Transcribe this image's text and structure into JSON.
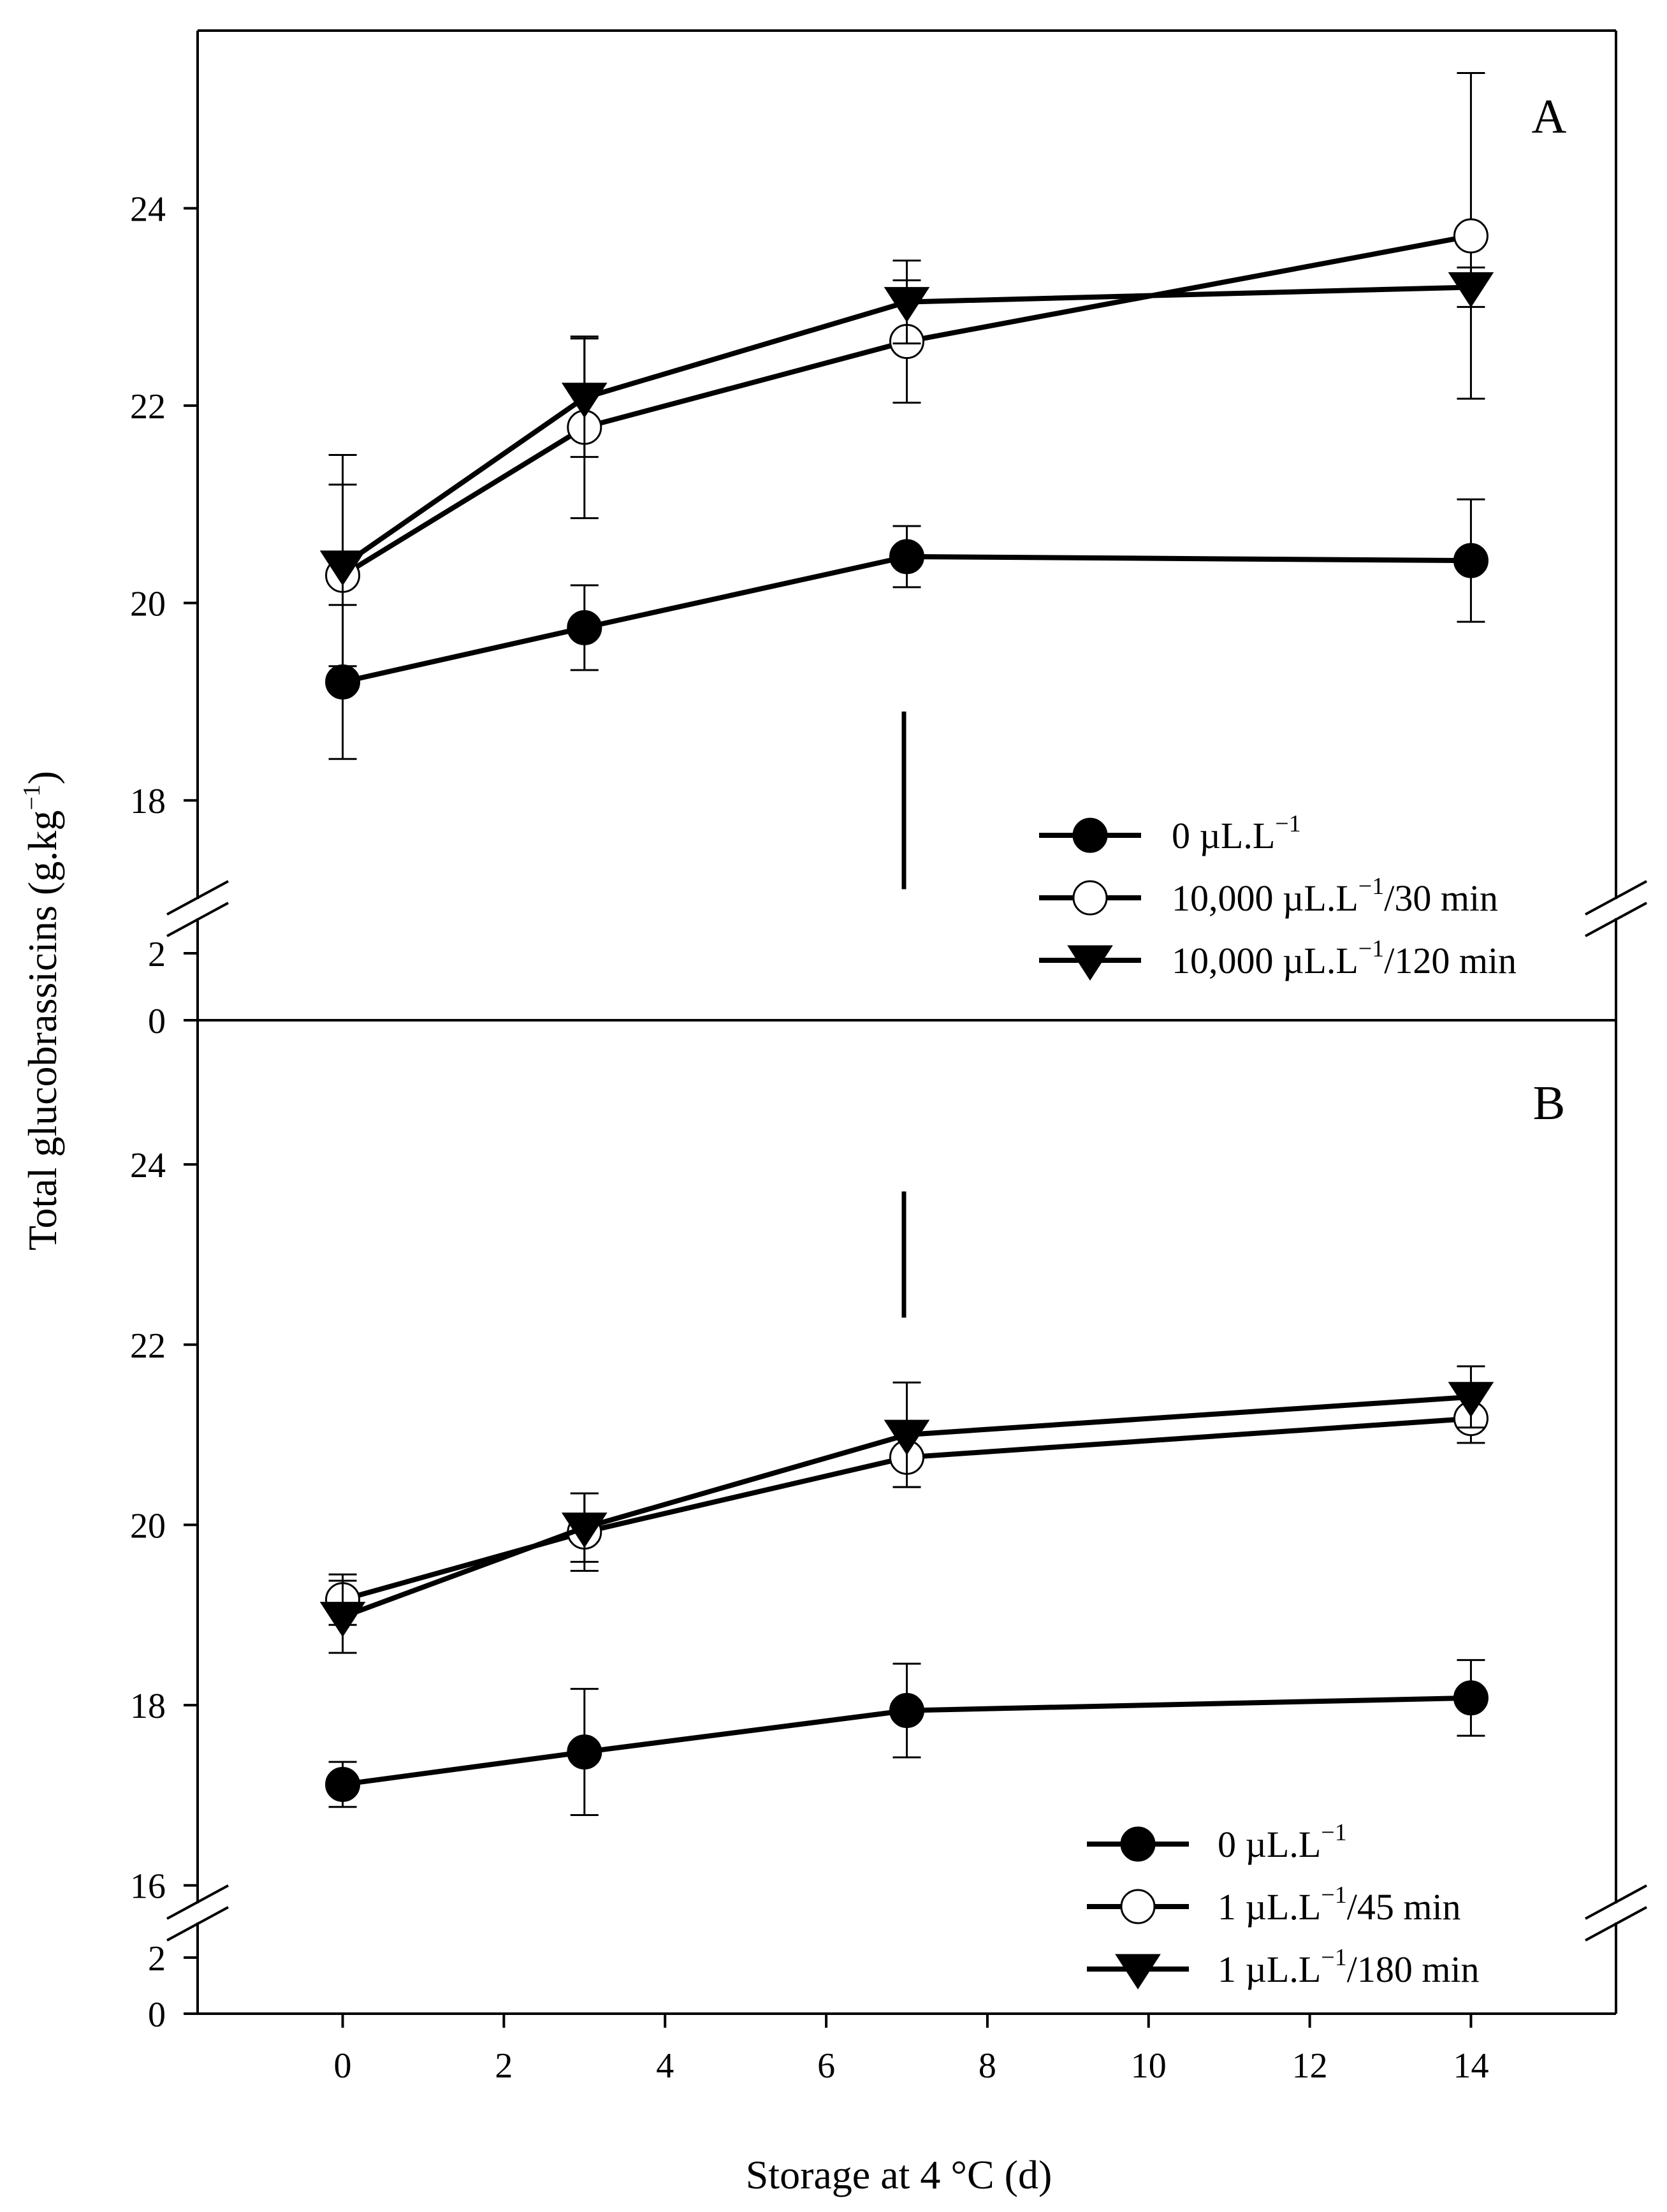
{
  "figure": {
    "ylabel_main": "Total glucobrassicins (g.kg",
    "ylabel_sup": "−1",
    "ylabel_close": ")",
    "xlabel": "Storage at 4 °C (d)"
  },
  "chart_data": [
    {
      "type": "line",
      "panel": "A",
      "x": [
        0,
        3,
        7,
        14
      ],
      "xlim": [
        -1.8,
        15.8
      ],
      "xticks": [
        "0",
        "2",
        "4",
        "6",
        "8",
        "10",
        "12",
        "14"
      ],
      "ylim": [
        17,
        25.8
      ],
      "yticks": [
        "18",
        "20",
        "22",
        "24"
      ],
      "broken_axis_ticks": [
        "2",
        "0"
      ],
      "lsd_bar": [
        17.1,
        18.9
      ],
      "series": [
        {
          "name": "0 µL.L−1",
          "legend_main": "0 µL.L",
          "legend_sup": "−1",
          "legend_tail": "",
          "marker": "filled-circle",
          "values": [
            19.2,
            19.75,
            20.47,
            20.43
          ],
          "errors": [
            0.78,
            0.43,
            0.31,
            0.62
          ]
        },
        {
          "name": "10,000 µL.L−1/30 min",
          "legend_main": "10,000 µL.L",
          "legend_sup": "−1",
          "legend_tail": "/30 min",
          "marker": "open-circle",
          "values": [
            20.28,
            21.78,
            22.65,
            23.72
          ],
          "errors": [
            0.92,
            0.92,
            0.62,
            1.65
          ]
        },
        {
          "name": "10,000 µL.L−1/120 min",
          "legend_main": "10,000 µL.L",
          "legend_sup": "−1",
          "legend_tail": "/120 min",
          "marker": "filled-triangle",
          "values": [
            20.38,
            22.08,
            23.05,
            23.2
          ],
          "errors": [
            1.12,
            0.6,
            0.42,
            0.2
          ]
        }
      ]
    },
    {
      "type": "line",
      "panel": "B",
      "x": [
        0,
        3,
        7,
        14
      ],
      "xlim": [
        -1.8,
        15.8
      ],
      "xticks": [
        "0",
        "2",
        "4",
        "6",
        "8",
        "10",
        "12",
        "14"
      ],
      "ylim": [
        15.8,
        25.6
      ],
      "yticks": [
        "16",
        "18",
        "20",
        "22",
        "24"
      ],
      "broken_axis_ticks": [
        "2",
        "0"
      ],
      "lsd_bar": [
        22.3,
        23.7
      ],
      "series": [
        {
          "name": "0 µL.L−1",
          "legend_main": "0 µL.L",
          "legend_sup": "−1",
          "legend_tail": "",
          "marker": "filled-circle",
          "values": [
            17.12,
            17.48,
            17.94,
            18.08
          ],
          "errors": [
            0.25,
            0.7,
            0.52,
            0.42
          ]
        },
        {
          "name": "1 µL.L−1/45 min",
          "legend_main": "1 µL.L",
          "legend_sup": "−1",
          "legend_tail": "/45 min",
          "marker": "open-circle",
          "values": [
            19.17,
            19.92,
            20.75,
            21.18
          ],
          "errors": [
            0.28,
            0.43,
            0.33,
            0.27
          ]
        },
        {
          "name": "1 µL.L−1/180 min",
          "legend_main": "1 µL.L",
          "legend_sup": "−1",
          "legend_tail": "/180 min",
          "marker": "filled-triangle",
          "values": [
            18.98,
            19.97,
            21.0,
            21.42
          ],
          "errors": [
            0.4,
            0.38,
            0.58,
            0.34
          ]
        }
      ]
    }
  ]
}
